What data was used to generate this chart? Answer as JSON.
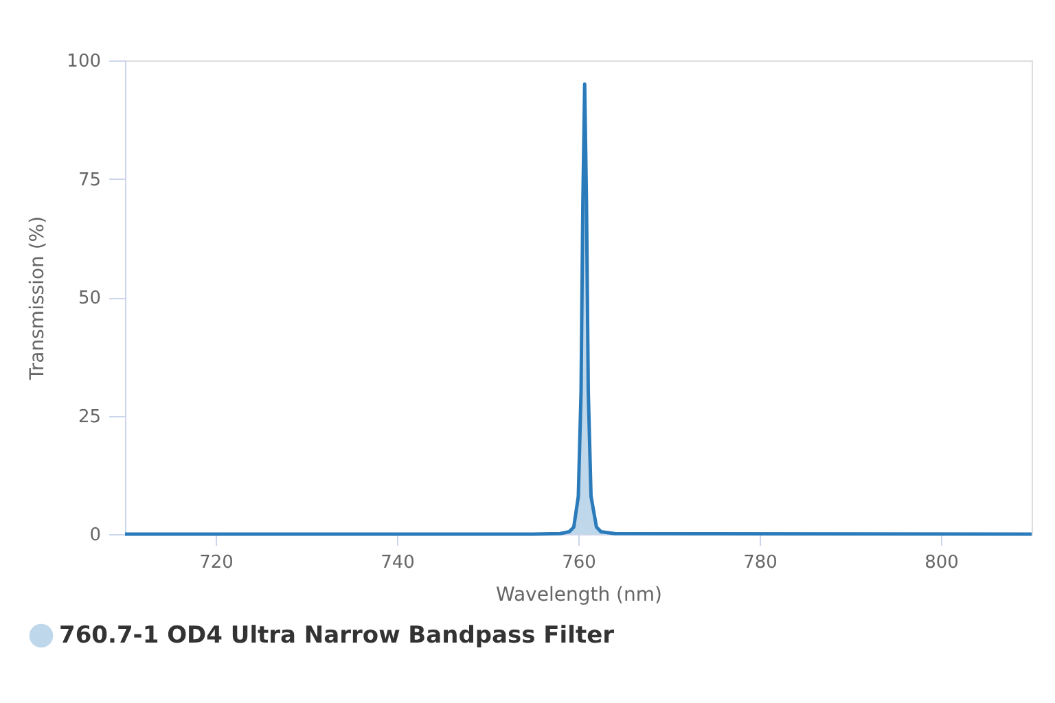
{
  "chart_data": {
    "type": "area",
    "xlabel": "Wavelength (nm)",
    "ylabel": "Transmission (%)",
    "x": [
      710,
      755,
      758,
      759,
      759.5,
      760,
      760.3,
      760.5,
      760.7,
      760.9,
      761.1,
      761.4,
      762,
      762.5,
      764,
      810
    ],
    "series": [
      {
        "name": "760.7-1 OD4 Ultra Narrow Bandpass Filter",
        "color": "#2b7bba",
        "values": [
          0,
          0,
          0.1,
          0.5,
          1.5,
          8,
          30,
          70,
          95,
          70,
          30,
          8,
          1.5,
          0.5,
          0.1,
          0
        ]
      }
    ],
    "xlim": [
      710,
      810
    ],
    "xticks": [
      720,
      740,
      760,
      780,
      800
    ],
    "ylim": [
      0,
      100
    ],
    "yticks": [
      0,
      25,
      50,
      75,
      100
    ],
    "grid": false,
    "legend": "bottom left",
    "marker": "none",
    "line_style": "solid"
  }
}
